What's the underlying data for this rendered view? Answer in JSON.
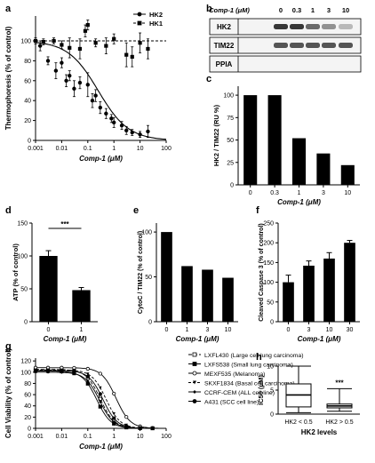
{
  "chart_data": [
    {
      "panel": "a",
      "type": "scatter",
      "xlabel": "Comp-1 (μM)",
      "ylabel": "Thermophoresis (% of control)",
      "x_scale": "log",
      "xlim": [
        0.001,
        100
      ],
      "ylim": [
        0,
        125
      ],
      "x_ticks": [
        "0.001",
        "0.01",
        "0.1",
        "1",
        "10",
        "100"
      ],
      "y_ticks": [
        "0",
        "20",
        "40",
        "60",
        "80",
        "100"
      ],
      "legend": "top-right",
      "series": [
        {
          "name": "HK2",
          "style": "circle-solid-fit",
          "x": [
            0.0015,
            0.003,
            0.006,
            0.01,
            0.015,
            0.02,
            0.03,
            0.05,
            0.1,
            0.15,
            0.2,
            0.3,
            0.5,
            0.8,
            1,
            2,
            3,
            5,
            10,
            20
          ],
          "y": [
            95,
            80,
            70,
            78,
            60,
            65,
            52,
            58,
            56,
            40,
            45,
            33,
            27,
            22,
            18,
            15,
            10,
            8,
            6,
            9
          ],
          "err": [
            5,
            4,
            8,
            5,
            6,
            5,
            8,
            6,
            12,
            7,
            6,
            6,
            5,
            4,
            5,
            4,
            4,
            3,
            3,
            6
          ]
        },
        {
          "name": "HK1",
          "style": "square-dashed",
          "x": [
            0.001,
            0.002,
            0.005,
            0.01,
            0.02,
            0.05,
            0.08,
            0.1,
            0.2,
            0.5,
            1,
            3,
            5,
            10,
            20
          ],
          "y": [
            100,
            99,
            100,
            96,
            93,
            92,
            110,
            116,
            98,
            95,
            102,
            86,
            84,
            98,
            92
          ],
          "err": [
            3,
            3,
            3,
            4,
            10,
            10,
            6,
            5,
            4,
            8,
            5,
            12,
            10,
            10,
            10
          ]
        }
      ]
    },
    {
      "panel": "b",
      "type": "table",
      "header_label": "Comp-1 (μM)",
      "columns": [
        "0",
        "0.3",
        "1",
        "3",
        "10"
      ],
      "rows": [
        "HK2",
        "TIM22",
        "PPIA"
      ],
      "band_intensity": {
        "HK2": [
          1.0,
          1.0,
          0.75,
          0.55,
          0.35
        ],
        "TIM22": [
          0.85,
          0.85,
          0.85,
          0.85,
          0.85
        ],
        "PPIA": [
          0.6,
          0.6,
          0.6,
          0.6,
          0.6
        ]
      }
    },
    {
      "panel": "c",
      "type": "bar",
      "categories": [
        "0",
        "0.3",
        "1",
        "3",
        "10"
      ],
      "values": [
        100,
        100,
        52,
        35,
        22
      ],
      "xlabel": "Comp-1 (μM)",
      "ylabel": "HK2 / TIM22 (RU %)",
      "ylim": [
        0,
        110
      ],
      "y_ticks": [
        "0",
        "25",
        "50",
        "75",
        "100"
      ]
    },
    {
      "panel": "d",
      "type": "bar",
      "categories": [
        "0",
        "1"
      ],
      "values": [
        100,
        48
      ],
      "err": [
        8,
        4
      ],
      "significance": "***",
      "xlabel": "Comp-1 (μM)",
      "ylabel": "ATP (% of control)",
      "ylim": [
        0,
        150
      ],
      "y_ticks": [
        "0",
        "50",
        "100",
        "150"
      ]
    },
    {
      "panel": "e",
      "type": "bar",
      "categories": [
        "0",
        "1",
        "3",
        "10"
      ],
      "values": [
        100,
        62,
        58,
        49
      ],
      "xlabel": "Comp-1 (μM)",
      "ylabel": "CytoC / TIM22 (% of control)",
      "ylim": [
        0,
        110
      ],
      "y_ticks": [
        "0",
        "50",
        "100"
      ]
    },
    {
      "panel": "f",
      "type": "bar",
      "categories": [
        "0",
        "3",
        "10",
        "30"
      ],
      "values": [
        100,
        142,
        160,
        200
      ],
      "err": [
        18,
        12,
        15,
        6
      ],
      "xlabel": "Comp-1 (μM)",
      "ylabel": "Cleaved Caspase 3 (% of control)",
      "ylim": [
        0,
        250
      ],
      "y_ticks": [
        "0",
        "50",
        "100",
        "150",
        "200",
        "250"
      ]
    },
    {
      "panel": "g",
      "type": "line",
      "xlabel": "Comp-1 (μM)",
      "ylabel": "Cell Viability (% of control)",
      "x_scale": "log",
      "xlim": [
        0.001,
        100
      ],
      "ylim": [
        0,
        125
      ],
      "x_ticks": [
        "0.001",
        "0.01",
        "0.1",
        "1",
        "10",
        "100"
      ],
      "y_ticks": [
        "0",
        "20",
        "40",
        "60",
        "80",
        "100",
        "120"
      ],
      "legend": "top-right",
      "series": [
        {
          "name": "LXFL430 (Large cell lung carcinoma)",
          "marker": "square-open",
          "dash": "4,2",
          "ic50": 0.3,
          "top": 105
        },
        {
          "name": "LXFS538 (Small lung carcinoma)",
          "marker": "square-solid",
          "dash": "",
          "ic50": 0.22,
          "top": 102
        },
        {
          "name": "MEXF535 (Melanoma)",
          "marker": "circle-open",
          "dash": "",
          "ic50": 1.2,
          "top": 108
        },
        {
          "name": "SKXF1834 (Basal cell carcinoma)",
          "marker": "triangle-solid",
          "dash": "3,2",
          "ic50": 0.5,
          "top": 104
        },
        {
          "name": "CCRF-CEM (ALL cell line)",
          "marker": "diamond-solid",
          "dash": "",
          "ic50": 0.28,
          "top": 100
        },
        {
          "name": "A431 (SCC cell line)",
          "marker": "circle-solid",
          "dash": "",
          "ic50": 0.38,
          "top": 103
        }
      ]
    },
    {
      "panel": "h",
      "type": "box",
      "categories": [
        "HK2 < 0.5",
        "HK2 > 0.5"
      ],
      "boxes": [
        {
          "min": 0.3,
          "q1": 1.5,
          "median": 4.0,
          "q3": 6.3,
          "max": 10.0
        },
        {
          "min": 0.6,
          "q1": 1.3,
          "median": 1.7,
          "q3": 2.1,
          "max": 5.3
        }
      ],
      "significance": "***",
      "xlabel": "HK2 levels",
      "ylabel": "IC50 (μM)",
      "ylim": [
        0,
        10
      ],
      "y_ticks": [
        "0",
        "5",
        "10"
      ]
    }
  ],
  "panel_labels": [
    "a",
    "b",
    "c",
    "d",
    "e",
    "f",
    "g",
    "h"
  ]
}
